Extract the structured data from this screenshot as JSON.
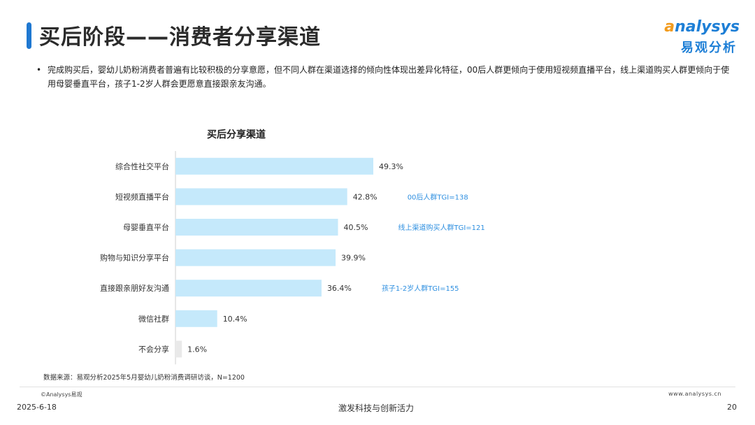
{
  "header": {
    "title": "买后阶段——消费者分享渠道",
    "logo_en_a": "a",
    "logo_en_rest": "nalysys",
    "logo_cn": "易观分析"
  },
  "intro": {
    "bullet": "•",
    "text": "完成购买后，婴幼儿奶粉消费者普遍有比较积极的分享意愿，但不同人群在渠道选择的倾向性体现出差异化特征，00后人群更倾向于使用短视频直播平台，线上渠道购买人群更倾向于使用母婴垂直平台，孩子1-2岁人群会更愿意直接跟亲友沟通。"
  },
  "chart_data": {
    "type": "bar",
    "orientation": "horizontal",
    "title": "买后分享渠道",
    "categories": [
      "综合性社交平台",
      "短视频直播平台",
      "母婴垂直平台",
      "购物与知识分享平台",
      "直接跟亲朋好友沟通",
      "微信社群",
      "不会分享"
    ],
    "values": [
      49.3,
      42.8,
      40.5,
      39.9,
      36.4,
      10.4,
      1.6
    ],
    "value_labels": [
      "49.3%",
      "42.8%",
      "40.5%",
      "39.9%",
      "36.4%",
      "10.4%",
      "1.6%"
    ],
    "annotations": [
      "",
      "00后人群TGI=138",
      "线上渠道购买人群TGI=121",
      "",
      "孩子1-2岁人群TGI=155",
      "",
      ""
    ],
    "xlim": [
      0,
      100
    ],
    "grid": false,
    "legend": "none",
    "colors": {
      "bar_main": "#c5e9fb",
      "bar_muted": "#e9e9e9",
      "annotation": "#2e8fe0",
      "axis": "#cfcfcf"
    }
  },
  "footer": {
    "source": "数据来源：易观分析2025年5月婴幼儿奶粉消费调研访谈，N=1200",
    "copyright": "©Analysys易观",
    "website": "www.analysys.cn",
    "date": "2025-6-18",
    "slogan": "激发科技与创新活力",
    "page": "20"
  }
}
